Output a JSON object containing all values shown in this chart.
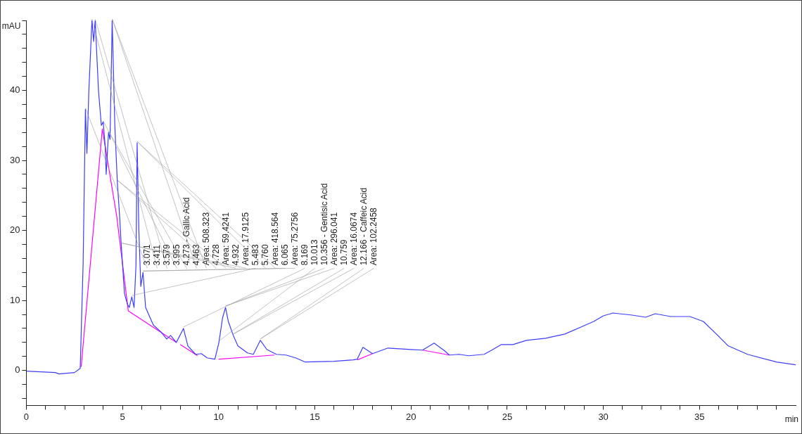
{
  "chart_data": {
    "type": "line",
    "xlabel": "min",
    "ylabel": "mAU",
    "xlim": [
      0,
      40
    ],
    "ylim": [
      -5,
      50
    ],
    "xticks": [
      0,
      {
        "value": 1,
        "label": null
      },
      {
        "value": 2,
        "label": null
      },
      {
        "value": 3,
        "label": null
      },
      {
        "value": 4,
        "label": null
      },
      5,
      {
        "value": 6,
        "label": null
      },
      {
        "value": 7,
        "label": null
      },
      {
        "value": 8,
        "label": null
      },
      {
        "value": 9,
        "label": null
      },
      10,
      {
        "value": 11,
        "label": null
      },
      {
        "value": 12,
        "label": null
      },
      {
        "value": 13,
        "label": null
      },
      {
        "value": 14,
        "label": null
      },
      15,
      {
        "value": 16,
        "label": null
      },
      {
        "value": 17,
        "label": null
      },
      {
        "value": 18,
        "label": null
      },
      {
        "value": 19,
        "label": null
      },
      20,
      {
        "value": 21,
        "label": null
      },
      {
        "value": 22,
        "label": null
      },
      {
        "value": 23,
        "label": null
      },
      {
        "value": 24,
        "label": null
      },
      25,
      {
        "value": 26,
        "label": null
      },
      {
        "value": 27,
        "label": null
      },
      {
        "value": 28,
        "label": null
      },
      {
        "value": 29,
        "label": null
      },
      30,
      {
        "value": 31,
        "label": null
      },
      {
        "value": 32,
        "label": null
      },
      {
        "value": 33,
        "label": null
      },
      {
        "value": 34,
        "label": null
      },
      35,
      {
        "value": 36,
        "label": null
      },
      {
        "value": 37,
        "label": null
      },
      {
        "value": 38,
        "label": null
      },
      {
        "value": 39,
        "label": null
      }
    ],
    "yticks": [
      {
        "value": -4,
        "label": null
      },
      {
        "value": -2,
        "label": null
      },
      0,
      {
        "value": 2,
        "label": null
      },
      {
        "value": 4,
        "label": null
      },
      {
        "value": 6,
        "label": null
      },
      {
        "value": 8,
        "label": null
      },
      10,
      {
        "value": 12,
        "label": null
      },
      {
        "value": 14,
        "label": null
      },
      {
        "value": 16,
        "label": null
      },
      {
        "value": 18,
        "label": null
      },
      20,
      {
        "value": 22,
        "label": null
      },
      {
        "value": 24,
        "label": null
      },
      {
        "value": 26,
        "label": null
      },
      {
        "value": 28,
        "label": null
      },
      30,
      {
        "value": 32,
        "label": null
      },
      {
        "value": 34,
        "label": null
      },
      {
        "value": 36,
        "label": null
      },
      {
        "value": 38,
        "label": null
      },
      40,
      {
        "value": 42,
        "label": null
      },
      {
        "value": 44,
        "label": null
      },
      {
        "value": 46,
        "label": null
      },
      {
        "value": 48,
        "label": null
      },
      {
        "value": 50,
        "label": null
      }
    ],
    "grid": false,
    "legend": false,
    "marker": "none",
    "line_style": "solid",
    "series": [
      {
        "color": "#3c3cff",
        "x": [
          0,
          1.5,
          1.7,
          2.5,
          2.8,
          2.95,
          3.071,
          3.15,
          3.25,
          3.411,
          3.5,
          3.579,
          3.75,
          3.9,
          3.995,
          4.1,
          4.15,
          4.273,
          4.35,
          4.463,
          4.6,
          4.728,
          4.85,
          4.932,
          5.1,
          5.25,
          5.35,
          5.483,
          5.6,
          5.7,
          5.76,
          5.85,
          5.95,
          6.065,
          6.2,
          6.6,
          7.0,
          7.3,
          7.5,
          7.8,
          8.169,
          8.4,
          8.8,
          9.1,
          9.4,
          9.8,
          10.013,
          10.2,
          10.356,
          10.5,
          10.759,
          11.0,
          11.5,
          11.8,
          12.166,
          12.5,
          13.0,
          13.5,
          14.0,
          14.5,
          16.0,
          17.0,
          17.2,
          17.5,
          18.0,
          18.8,
          20.0,
          20.6,
          21.2,
          21.7,
          22.0,
          22.5,
          23.0,
          23.8,
          24.2,
          24.7,
          25.3,
          26.0,
          27.0,
          28.0,
          29.0,
          29.5,
          30.0,
          30.5,
          31.5,
          32.2,
          32.7,
          33.5,
          34.5,
          35.2,
          35.8,
          36.5,
          37.5,
          39.0,
          40.0
        ],
        "values": [
          -0.1,
          -0.3,
          -0.5,
          -0.3,
          0.3,
          15,
          37.3,
          31,
          40,
          50,
          47,
          50,
          40,
          35,
          35.5,
          32,
          28,
          34,
          33,
          50,
          35,
          27,
          22,
          18,
          11,
          9.5,
          9,
          10.5,
          9,
          15,
          32.5,
          20,
          12,
          14,
          9,
          6.5,
          5.5,
          4.5,
          5,
          4,
          6,
          3.5,
          2.3,
          2.4,
          1.8,
          1.6,
          4,
          7.5,
          9,
          7,
          5,
          3.5,
          2.5,
          2.3,
          4.3,
          3,
          2.3,
          2.2,
          1.8,
          1.2,
          1.3,
          1.5,
          1.6,
          3.3,
          2.4,
          3.2,
          3,
          2.9,
          3.9,
          2.9,
          2.2,
          2.3,
          2.1,
          2.3,
          2.9,
          3.7,
          3.7,
          4.3,
          4.6,
          5.2,
          6.4,
          7,
          7.8,
          8.2,
          7.9,
          7.6,
          8.1,
          7.7,
          7.7,
          7,
          5.4,
          3.5,
          2.3,
          1.2,
          0.8
        ]
      },
      {
        "color": "#ff00ff",
        "x": [
          2.85,
          3.95,
          4.7,
          5.3,
          7.8,
          7.9,
          8.0,
          8.9,
          9.5,
          10.0,
          12.9,
          13.5,
          17.2,
          18.0,
          18.5,
          20.6,
          22.0
        ],
        "values": [
          0.5,
          34.5,
          22,
          8.5,
          4,
          null,
          3.7,
          2.1,
          null,
          1.6,
          2.2,
          null,
          1.5,
          2.4,
          null,
          2.9,
          2.2
        ]
      }
    ],
    "annotations": [
      {
        "text": "3.071",
        "x": 3.071,
        "y": 37.3
      },
      {
        "text": "3.411",
        "x": 3.411,
        "y": 50
      },
      {
        "text": "3.579",
        "x": 3.579,
        "y": 50
      },
      {
        "text": "3.995",
        "x": 3.995,
        "y": 35.5
      },
      {
        "text": "4.273 - Gallic Acid",
        "x": 4.273,
        "y": 34
      },
      {
        "text": "4.463",
        "x": 4.463,
        "y": 50
      },
      {
        "text": "Area: 508.323",
        "x": 4.463,
        "y": 50
      },
      {
        "text": "4.728",
        "x": 4.728,
        "y": 27
      },
      {
        "text": "Area: 59.4241",
        "x": 4.728,
        "y": 27
      },
      {
        "text": "4.932",
        "x": 4.932,
        "y": 18
      },
      {
        "text": "Area: 17.9125",
        "x": 4.932,
        "y": 18
      },
      {
        "text": "5.483",
        "x": 5.483,
        "y": 10.5
      },
      {
        "text": "5.760",
        "x": 5.76,
        "y": 32.5
      },
      {
        "text": "Area: 418.564",
        "x": 5.76,
        "y": 32.5
      },
      {
        "text": "6.065",
        "x": 6.065,
        "y": 14
      },
      {
        "text": "Area: 75.2756",
        "x": 6.065,
        "y": 14
      },
      {
        "text": "8.169",
        "x": 8.169,
        "y": 6
      },
      {
        "text": "10.013",
        "x": 10.013,
        "y": 4
      },
      {
        "text": "10.356 - Gentisic Acid",
        "x": 10.356,
        "y": 9
      },
      {
        "text": "Area: 296.041",
        "x": 10.356,
        "y": 9
      },
      {
        "text": "10.759",
        "x": 10.759,
        "y": 5
      },
      {
        "text": "Area: 16.0674",
        "x": 10.759,
        "y": 5
      },
      {
        "text": "12.166 - Caffeic Acid",
        "x": 12.166,
        "y": 4.3
      },
      {
        "text": "Area: 102.2458",
        "x": 12.166,
        "y": 4.3
      }
    ]
  }
}
